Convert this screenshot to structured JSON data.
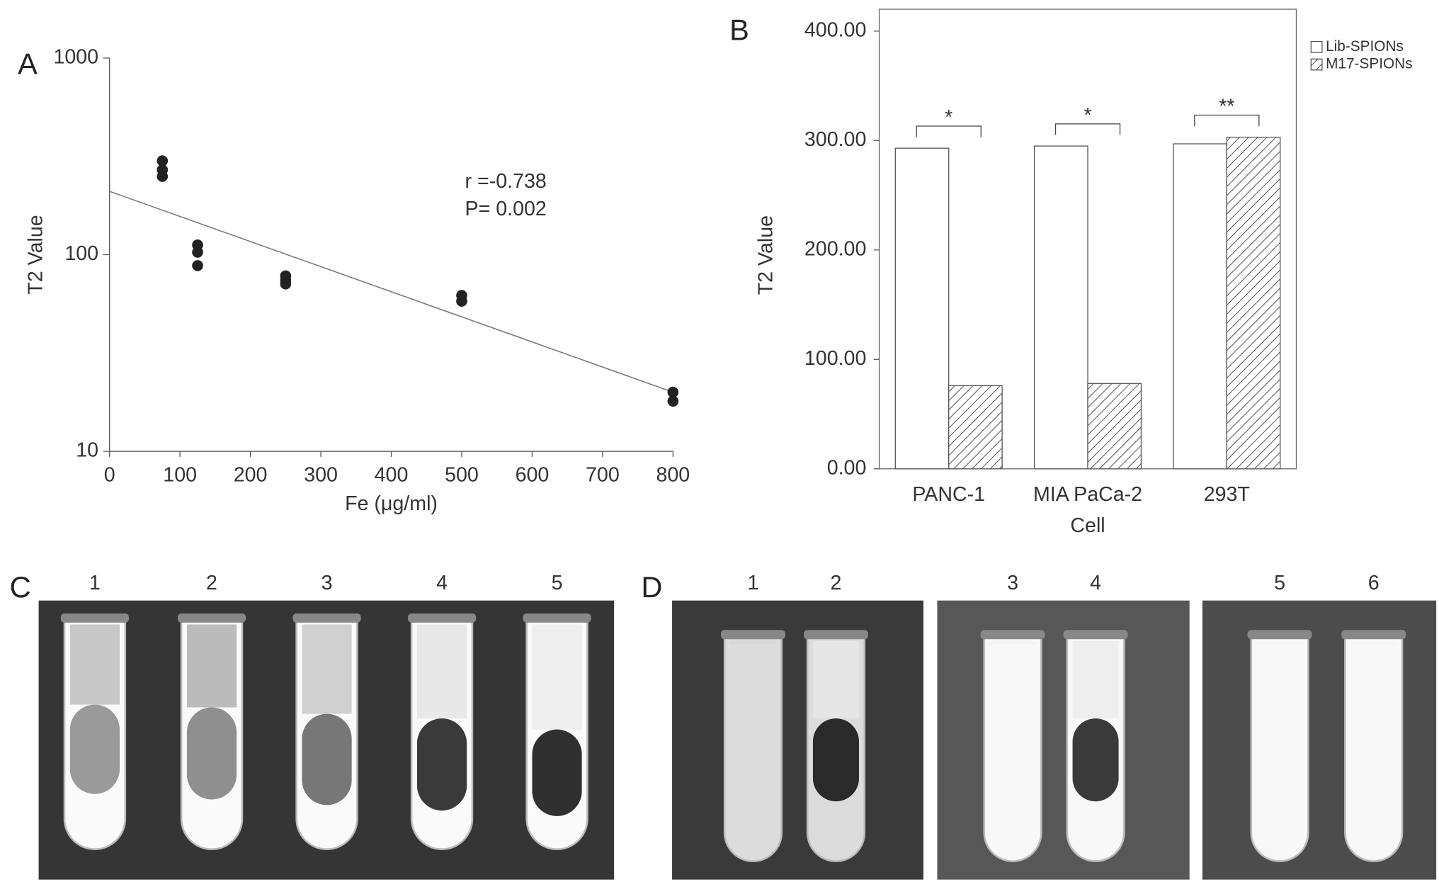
{
  "panel_labels": [
    "A",
    "B",
    "C",
    "D"
  ],
  "chart_data": [
    {
      "type": "scatter",
      "xlabel": "Fe (μg/ml)",
      "ylabel": "T2 Value",
      "x": [
        75,
        75,
        75,
        125,
        125,
        125,
        250,
        250,
        250,
        500,
        500,
        800,
        800
      ],
      "values": [
        300,
        270,
        250,
        112,
        103,
        88,
        78,
        74,
        71,
        62,
        58,
        20,
        18
      ],
      "color": "#222222",
      "fit": {
        "x": [
          0,
          800
        ],
        "values": [
          210,
          20
        ],
        "color": "#777777"
      },
      "annotations": [
        "r =-0.738",
        "P= 0.002"
      ],
      "xlim": [
        0,
        800
      ],
      "xticks": [
        0,
        100,
        200,
        300,
        400,
        500,
        600,
        700,
        800
      ],
      "ylim": [
        10,
        1000
      ],
      "yticks": [
        10,
        100,
        1000
      ],
      "yscale": "log"
    },
    {
      "type": "bar",
      "xlabel": "Cell",
      "ylabel": "T2 Value",
      "categories": [
        "PANC-1",
        "MIA PaCa-2",
        "293T"
      ],
      "series": [
        {
          "name": "Lib-SPIONs",
          "color": "#ffffff",
          "hatch": false,
          "values": [
            293,
            295,
            297
          ]
        },
        {
          "name": "M17-SPIONs",
          "color": "#555555",
          "hatch": true,
          "values": [
            76,
            78,
            303
          ]
        }
      ],
      "significance": [
        "*",
        "*",
        "**"
      ],
      "ylim": [
        0,
        420
      ],
      "yticks": [
        {
          "value": 0,
          "label": "0.00"
        },
        {
          "value": 100,
          "label": "100.00"
        },
        {
          "value": 200,
          "label": "200.00"
        },
        {
          "value": 300,
          "label": "300.00"
        },
        {
          "value": 400,
          "label": "400.00"
        }
      ],
      "legend": "top-right"
    }
  ],
  "panels": {
    "C": {
      "tubes": [
        "1",
        "2",
        "3",
        "4",
        "5"
      ]
    },
    "D": {
      "tubes": [
        "1",
        "2",
        "3",
        "4",
        "5",
        "6"
      ]
    }
  }
}
